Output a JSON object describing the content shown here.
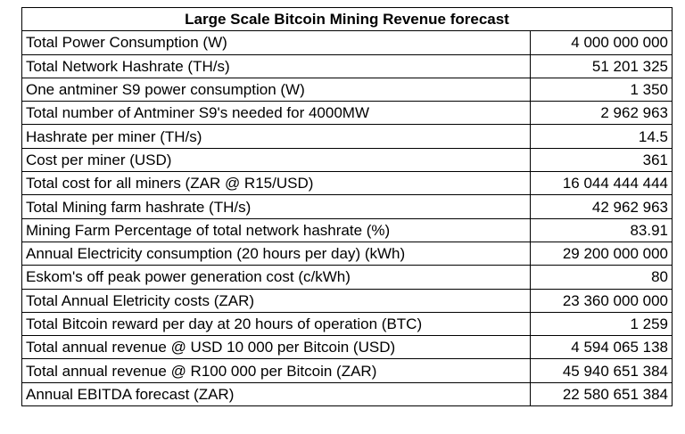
{
  "table": {
    "title": "Large Scale Bitcoin Mining Revenue forecast",
    "rows": [
      {
        "label": "Total Power Consumption (W)",
        "value": "4 000 000 000"
      },
      {
        "label": "Total Network Hashrate (TH/s)",
        "value": "51 201 325"
      },
      {
        "label": "One antminer S9 power consumption (W)",
        "value": "1 350"
      },
      {
        "label": "Total number of Antminer S9's needed for 4000MW",
        "value": "2 962 963"
      },
      {
        "label": "Hashrate per miner (TH/s)",
        "value": "14.5"
      },
      {
        "label": "Cost per miner (USD)",
        "value": "361"
      },
      {
        "label": "Total cost for all miners (ZAR @ R15/USD)",
        "value": "16 044 444 444"
      },
      {
        "label": "Total Mining farm hashrate (TH/s)",
        "value": "42 962 963"
      },
      {
        "label": "Mining Farm Percentage of total network hashrate (%)",
        "value": "83.91"
      },
      {
        "label": "Annual Electricity consumption (20 hours per day) (kWh)",
        "value": "29 200 000 000"
      },
      {
        "label": "Eskom's off peak power generation cost (c/kWh)",
        "value": "80"
      },
      {
        "label": "Total Annual Eletricity costs (ZAR)",
        "value": "23 360 000 000"
      },
      {
        "label": "Total Bitcoin reward per day at 20 hours of operation (BTC)",
        "value": "1 259"
      },
      {
        "label": "Total annual revenue @ USD 10 000 per Bitcoin (USD)",
        "value": "4 594 065 138"
      },
      {
        "label": "Total annual revenue @ R100 000 per Bitcoin (ZAR)",
        "value": "45 940 651 384"
      },
      {
        "label": "Annual EBITDA forecast (ZAR)",
        "value": "22 580 651 384"
      }
    ]
  }
}
